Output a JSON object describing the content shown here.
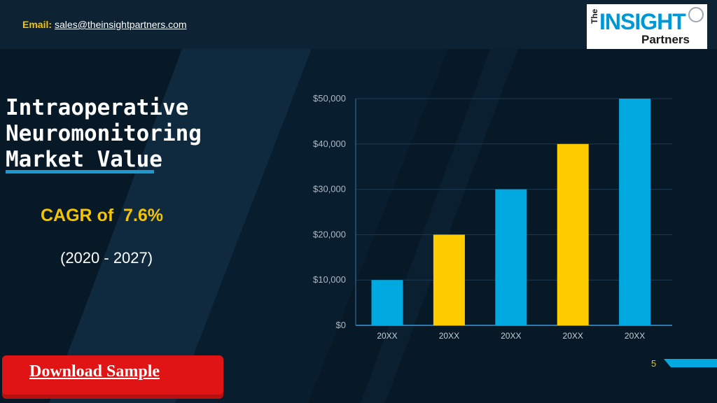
{
  "header": {
    "email_label": "Email:",
    "email_address": "sales@theinsightpartners.com"
  },
  "logo": {
    "the": "The",
    "insight": "INSIGHT",
    "partners": "Partners"
  },
  "title": "Intraoperative Neuromonitoring Market Value",
  "cagr_text": "CAGR of  7.6%",
  "period_text": "(2020 - 2027)",
  "download_label": "Download Sample",
  "page_number": "5",
  "colors": {
    "background": "#071827",
    "accent_blue": "#00a9e0",
    "accent_yellow": "#ffcc00",
    "cagr_yellow": "#f5c400",
    "button_red": "#e01414"
  },
  "chart_data": {
    "type": "bar",
    "categories": [
      "20XX",
      "20XX",
      "20XX",
      "20XX",
      "20XX"
    ],
    "values": [
      10000,
      20000,
      30000,
      40000,
      50000
    ],
    "bar_colors": [
      "#00a9e0",
      "#ffcc00",
      "#00a9e0",
      "#ffcc00",
      "#00a9e0"
    ],
    "yticks": [
      "$0",
      "$10,000",
      "$20,000",
      "$30,000",
      "$40,000",
      "$50,000"
    ],
    "ytick_values": [
      0,
      10000,
      20000,
      30000,
      40000,
      50000
    ],
    "ylim": [
      0,
      50000
    ],
    "grid": true,
    "legend": "none",
    "title": "",
    "xlabel": "",
    "ylabel": ""
  }
}
